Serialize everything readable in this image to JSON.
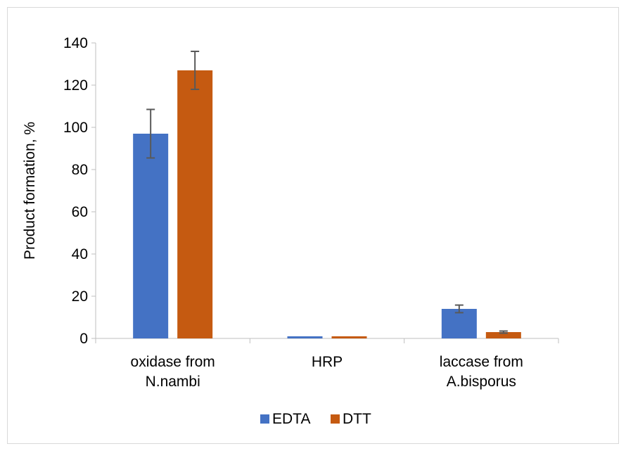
{
  "chart_data": {
    "type": "bar",
    "title": "",
    "xlabel": "",
    "ylabel": "Product formation, %",
    "ylim": [
      0,
      140
    ],
    "yticks": [
      0,
      20,
      40,
      60,
      80,
      100,
      120,
      140
    ],
    "categories": [
      [
        "oxidase from",
        "N.nambi"
      ],
      [
        "HRP"
      ],
      [
        "laccase from",
        "A.bisporus"
      ]
    ],
    "series": [
      {
        "name": "EDTA",
        "color": "#4472C4",
        "values": [
          97,
          1,
          14
        ],
        "error": [
          11.5,
          0,
          1.8
        ]
      },
      {
        "name": "DTT",
        "color": "#C55A11",
        "values": [
          127,
          1,
          3
        ],
        "error": [
          9,
          0,
          0.5
        ]
      }
    ],
    "grid": false,
    "legend_position": "bottom"
  }
}
